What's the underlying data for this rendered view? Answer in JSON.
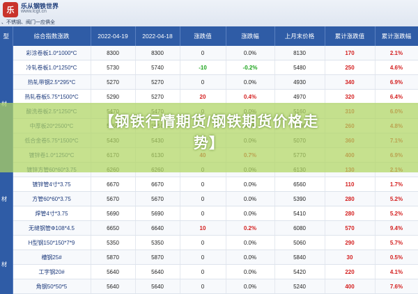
{
  "header": {
    "brand": "乐从钢铁世界",
    "site": "www.lcgt.cn",
    "tagline": "、不锈钢、阀门一应俱全"
  },
  "table": {
    "columns": [
      "型",
      "综合指数涨跌",
      "2022-04-19",
      "2022-04-18",
      "涨跌值",
      "涨跌幅",
      "上月末价格",
      "累计涨跌值",
      "累计涨跌幅"
    ],
    "groups": [
      {
        "label": "材",
        "rows": [
          {
            "name": "彩涂卷板1.0*1000*C",
            "a": "8300",
            "b": "8300",
            "chg": "0",
            "pct": "0.0%",
            "last": "8130",
            "cum": "170",
            "cumpct": "2.1%",
            "dir": "flat",
            "cdir": "up"
          },
          {
            "name": "冷轧卷板1.0*1250*C",
            "a": "5730",
            "b": "5740",
            "chg": "-10",
            "pct": "-0.2%",
            "last": "5480",
            "cum": "250",
            "cumpct": "4.6%",
            "dir": "dn",
            "cdir": "up"
          },
          {
            "name": "热轧带钢2.5*295*C",
            "a": "5270",
            "b": "5270",
            "chg": "0",
            "pct": "0.0%",
            "last": "4930",
            "cum": "340",
            "cumpct": "6.9%",
            "dir": "flat",
            "cdir": "up"
          },
          {
            "name": "热轧卷板5.75*1500*C",
            "a": "5290",
            "b": "5270",
            "chg": "20",
            "pct": "0.4%",
            "last": "4970",
            "cum": "320",
            "cumpct": "6.4%",
            "dir": "up",
            "cdir": "up"
          },
          {
            "name": "酸洗卷板2.5*1250*C",
            "a": "5470",
            "b": "5470",
            "chg": "0",
            "pct": "0.0%",
            "last": "5160",
            "cum": "310",
            "cumpct": "6.0%",
            "dir": "flat",
            "cdir": "up"
          },
          {
            "name": "中厚板20*2500*C",
            "a": "5650",
            "b": "5650",
            "chg": "0",
            "pct": "0.0%",
            "last": "5390",
            "cum": "260",
            "cumpct": "4.8%",
            "dir": "flat",
            "cdir": "up"
          },
          {
            "name": "低合金卷5.75*1500*C",
            "a": "5430",
            "b": "5430",
            "chg": "0",
            "pct": "0.0%",
            "last": "5070",
            "cum": "360",
            "cumpct": "7.1%",
            "dir": "flat",
            "cdir": "up"
          },
          {
            "name": "镀锌卷1.0*1250*C",
            "a": "6170",
            "b": "6130",
            "chg": "40",
            "pct": "0.7%",
            "last": "5770",
            "cum": "400",
            "cumpct": "6.9%",
            "dir": "up",
            "cdir": "up"
          }
        ]
      },
      {
        "label": "材",
        "rows": [
          {
            "name": "镀锌方管60*60*3.75",
            "a": "6260",
            "b": "6260",
            "chg": "0",
            "pct": "0.0%",
            "last": "6130",
            "cum": "130",
            "cumpct": "2.1%",
            "dir": "flat",
            "cdir": "up"
          },
          {
            "name": "镀锌管4寸*3.75",
            "a": "6670",
            "b": "6670",
            "chg": "0",
            "pct": "0.0%",
            "last": "6560",
            "cum": "110",
            "cumpct": "1.7%",
            "dir": "flat",
            "cdir": "up"
          },
          {
            "name": "方管60*60*3.75",
            "a": "5670",
            "b": "5670",
            "chg": "0",
            "pct": "0.0%",
            "last": "5390",
            "cum": "280",
            "cumpct": "5.2%",
            "dir": "flat",
            "cdir": "up"
          },
          {
            "name": "焊管4寸*3.75",
            "a": "5690",
            "b": "5690",
            "chg": "0",
            "pct": "0.0%",
            "last": "5410",
            "cum": "280",
            "cumpct": "5.2%",
            "dir": "flat",
            "cdir": "up"
          },
          {
            "name": "无缝钢管Φ108*4.5",
            "a": "6650",
            "b": "6640",
            "chg": "10",
            "pct": "0.2%",
            "last": "6080",
            "cum": "570",
            "cumpct": "9.4%",
            "dir": "up",
            "cdir": "up"
          }
        ]
      },
      {
        "label": "材",
        "rows": [
          {
            "name": "H型钢150*150*7*9",
            "a": "5350",
            "b": "5350",
            "chg": "0",
            "pct": "0.0%",
            "last": "5060",
            "cum": "290",
            "cumpct": "5.7%",
            "dir": "flat",
            "cdir": "up"
          },
          {
            "name": "槽钢25#",
            "a": "5870",
            "b": "5870",
            "chg": "0",
            "pct": "0.0%",
            "last": "5840",
            "cum": "30",
            "cumpct": "0.5%",
            "dir": "flat",
            "cdir": "up"
          },
          {
            "name": "工字钢20#",
            "a": "5640",
            "b": "5640",
            "chg": "0",
            "pct": "0.0%",
            "last": "5420",
            "cum": "220",
            "cumpct": "4.1%",
            "dir": "flat",
            "cdir": "up"
          },
          {
            "name": "角钢50*50*5",
            "a": "5640",
            "b": "5640",
            "chg": "0",
            "pct": "0.0%",
            "last": "5240",
            "cum": "400",
            "cumpct": "7.6%",
            "dir": "flat",
            "cdir": "up"
          }
        ]
      }
    ]
  },
  "overlay": {
    "line1": "【钢铁行情期货/钢铁期货价格走",
    "line2": "势】"
  },
  "colors": {
    "header_bg": "#2f5ca6",
    "up": "#d42020",
    "down": "#19a319",
    "band": "#b0d662"
  }
}
